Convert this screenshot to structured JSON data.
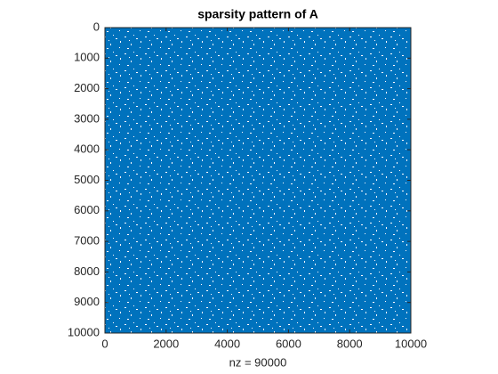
{
  "chart_data": {
    "type": "spy",
    "title": "sparsity pattern of A",
    "xlabel": "nz = 90000",
    "xlim": [
      0,
      10000
    ],
    "ylim": [
      0,
      10000
    ],
    "y_reversed": true,
    "xticks": [
      0,
      2000,
      4000,
      6000,
      8000,
      10000
    ],
    "yticks": [
      0,
      1000,
      2000,
      3000,
      4000,
      5000,
      6000,
      7000,
      8000,
      9000,
      10000
    ],
    "color": "#0072bd"
  }
}
